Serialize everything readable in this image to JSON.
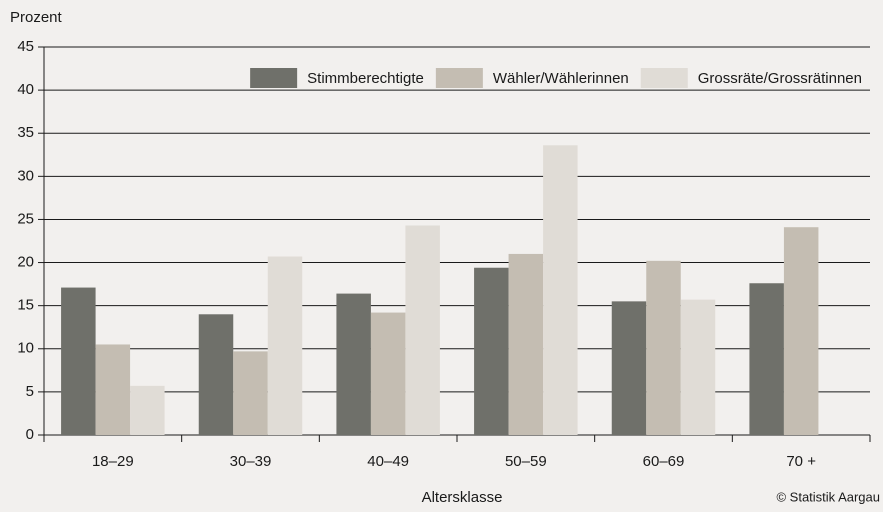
{
  "chart_data": {
    "type": "bar",
    "y_label": "Prozent",
    "x_label": "Altersklasse",
    "source": "© Statistik Aargau",
    "categories": [
      "18–29",
      "30–39",
      "40–49",
      "50–59",
      "60–69",
      "70 +"
    ],
    "series": [
      {
        "name": "Stimmberechtigte",
        "color": "#6f706a",
        "values": [
          17.1,
          14.0,
          16.4,
          19.4,
          15.5,
          17.6
        ]
      },
      {
        "name": "Wähler/Wählerinnen",
        "color": "#c4bdb2",
        "values": [
          10.5,
          9.7,
          14.2,
          21.0,
          20.2,
          24.1
        ]
      },
      {
        "name": "Grossräte/Grossrätinnen",
        "color": "#e0dcd6",
        "values": [
          5.7,
          20.7,
          24.3,
          33.6,
          15.7,
          null
        ]
      }
    ],
    "ylim": [
      0,
      45
    ],
    "yticks": [
      0,
      5,
      10,
      15,
      20,
      25,
      30,
      35,
      40,
      45
    ],
    "grid": true,
    "legend": "top-right"
  }
}
